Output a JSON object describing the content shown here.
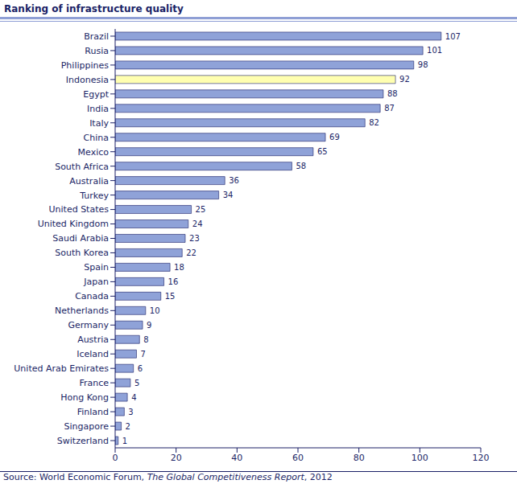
{
  "chart_data": {
    "type": "bar",
    "title": "Ranking of infrastructure quality",
    "source": [
      "Source: World Economic Forum, ",
      "The Global Competitiveness Report",
      ", 2012"
    ],
    "orientation": "horizontal",
    "categories": [
      "Brazil",
      "Rusia",
      "Philippines",
      "Indonesia",
      "Egypt",
      "India",
      "Italy",
      "China",
      "Mexico",
      "South Africa",
      "Australia",
      "Turkey",
      "United States",
      "United Kingdom",
      "Saudi Arabia",
      "South Korea",
      "Spain",
      "Japan",
      "Canada",
      "Netherlands",
      "Germany",
      "Austria",
      "Iceland",
      "United Arab Emirates",
      "France",
      "Hong Kong",
      "Finland",
      "Singapore",
      "Switzerland"
    ],
    "values": [
      107,
      101,
      98,
      92,
      88,
      87,
      82,
      69,
      65,
      58,
      36,
      34,
      25,
      24,
      23,
      22,
      18,
      16,
      15,
      10,
      9,
      8,
      7,
      6,
      5,
      4,
      3,
      2,
      1
    ],
    "colors": [
      "#8fa2d8",
      "#8fa2d8",
      "#8fa2d8",
      "#ffffb0",
      "#8fa2d8",
      "#8fa2d8",
      "#8fa2d8",
      "#8fa2d8",
      "#8fa2d8",
      "#8fa2d8",
      "#8fa2d8",
      "#8fa2d8",
      "#8fa2d8",
      "#8fa2d8",
      "#8fa2d8",
      "#8fa2d8",
      "#8fa2d8",
      "#8fa2d8",
      "#8fa2d8",
      "#8fa2d8",
      "#8fa2d8",
      "#8fa2d8",
      "#8fa2d8",
      "#8fa2d8",
      "#8fa2d8",
      "#8fa2d8",
      "#8fa2d8",
      "#8fa2d8",
      "#8fa2d8"
    ],
    "xlim": [
      0,
      120
    ],
    "xticks": [
      0,
      20,
      40,
      60,
      80,
      100,
      120
    ],
    "grid": false,
    "data_labels": true
  }
}
